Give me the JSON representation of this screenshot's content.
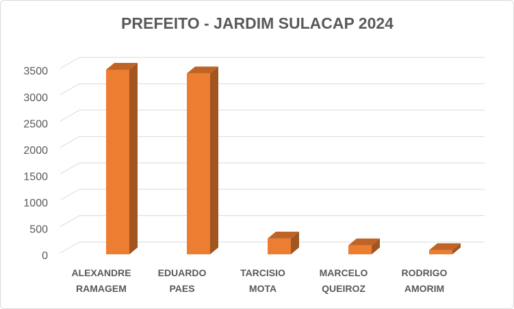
{
  "chart_data": {
    "type": "bar3d",
    "title": "PREFEITO - JARDIM SULACAP 2024",
    "categories": [
      "ALEXANDRE RAMAGEM",
      "EDUARDO PAES",
      "TARCISIO MOTA",
      "MARCELO QUEIROZ",
      "RODRIGO AMORIM"
    ],
    "values": [
      3500,
      3430,
      300,
      170,
      80
    ],
    "color": "#ED7D31",
    "ylim": [
      0,
      3500
    ],
    "yticks": [
      0,
      500,
      1000,
      1500,
      2000,
      2500,
      3000,
      3500
    ],
    "grid": true
  }
}
